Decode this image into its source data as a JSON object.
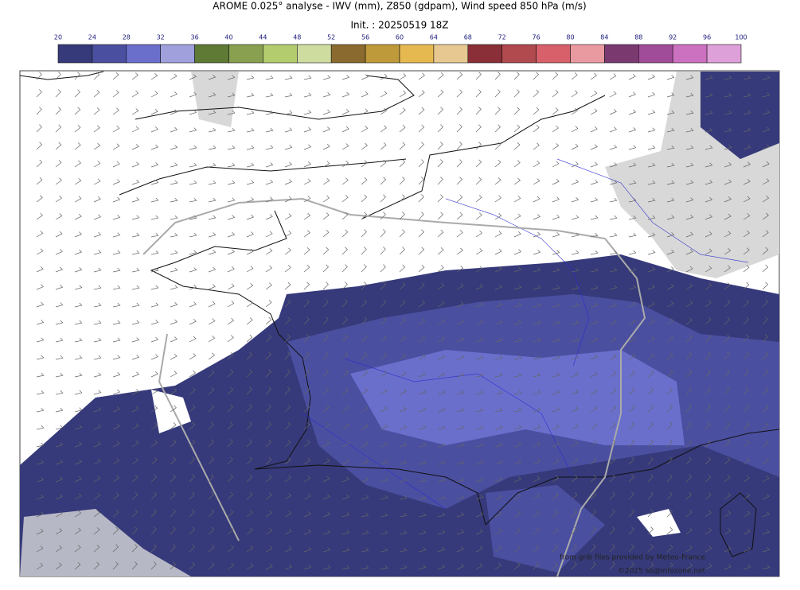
{
  "header": {
    "title": "AROME 0.025° analyse - IWV (mm), Z850 (gdpam), Wind speed 850 hPa (m/s)",
    "init": "Init. : 20250519 18Z"
  },
  "colorbar": {
    "ticks": [
      20,
      24,
      28,
      32,
      36,
      40,
      44,
      48,
      52,
      56,
      60,
      64,
      68,
      72,
      76,
      80,
      84,
      88,
      92,
      96,
      100
    ],
    "colors": [
      "#363a7a",
      "#4b4fa0",
      "#6a6fcc",
      "#9fa0dc",
      "#5e7a35",
      "#88a050",
      "#b2cc6e",
      "#cfdca0",
      "#8a6a2e",
      "#bf9a3a",
      "#e6b850",
      "#e6c890",
      "#8a2f38",
      "#b04a4e",
      "#d8606a",
      "#e89aa0",
      "#7a3a70",
      "#a04c98",
      "#cc70c0",
      "#dea0d8"
    ]
  },
  "credits": [
    "from grib files provided by Meteo-France",
    "©2025 sb@infozone.net"
  ]
}
